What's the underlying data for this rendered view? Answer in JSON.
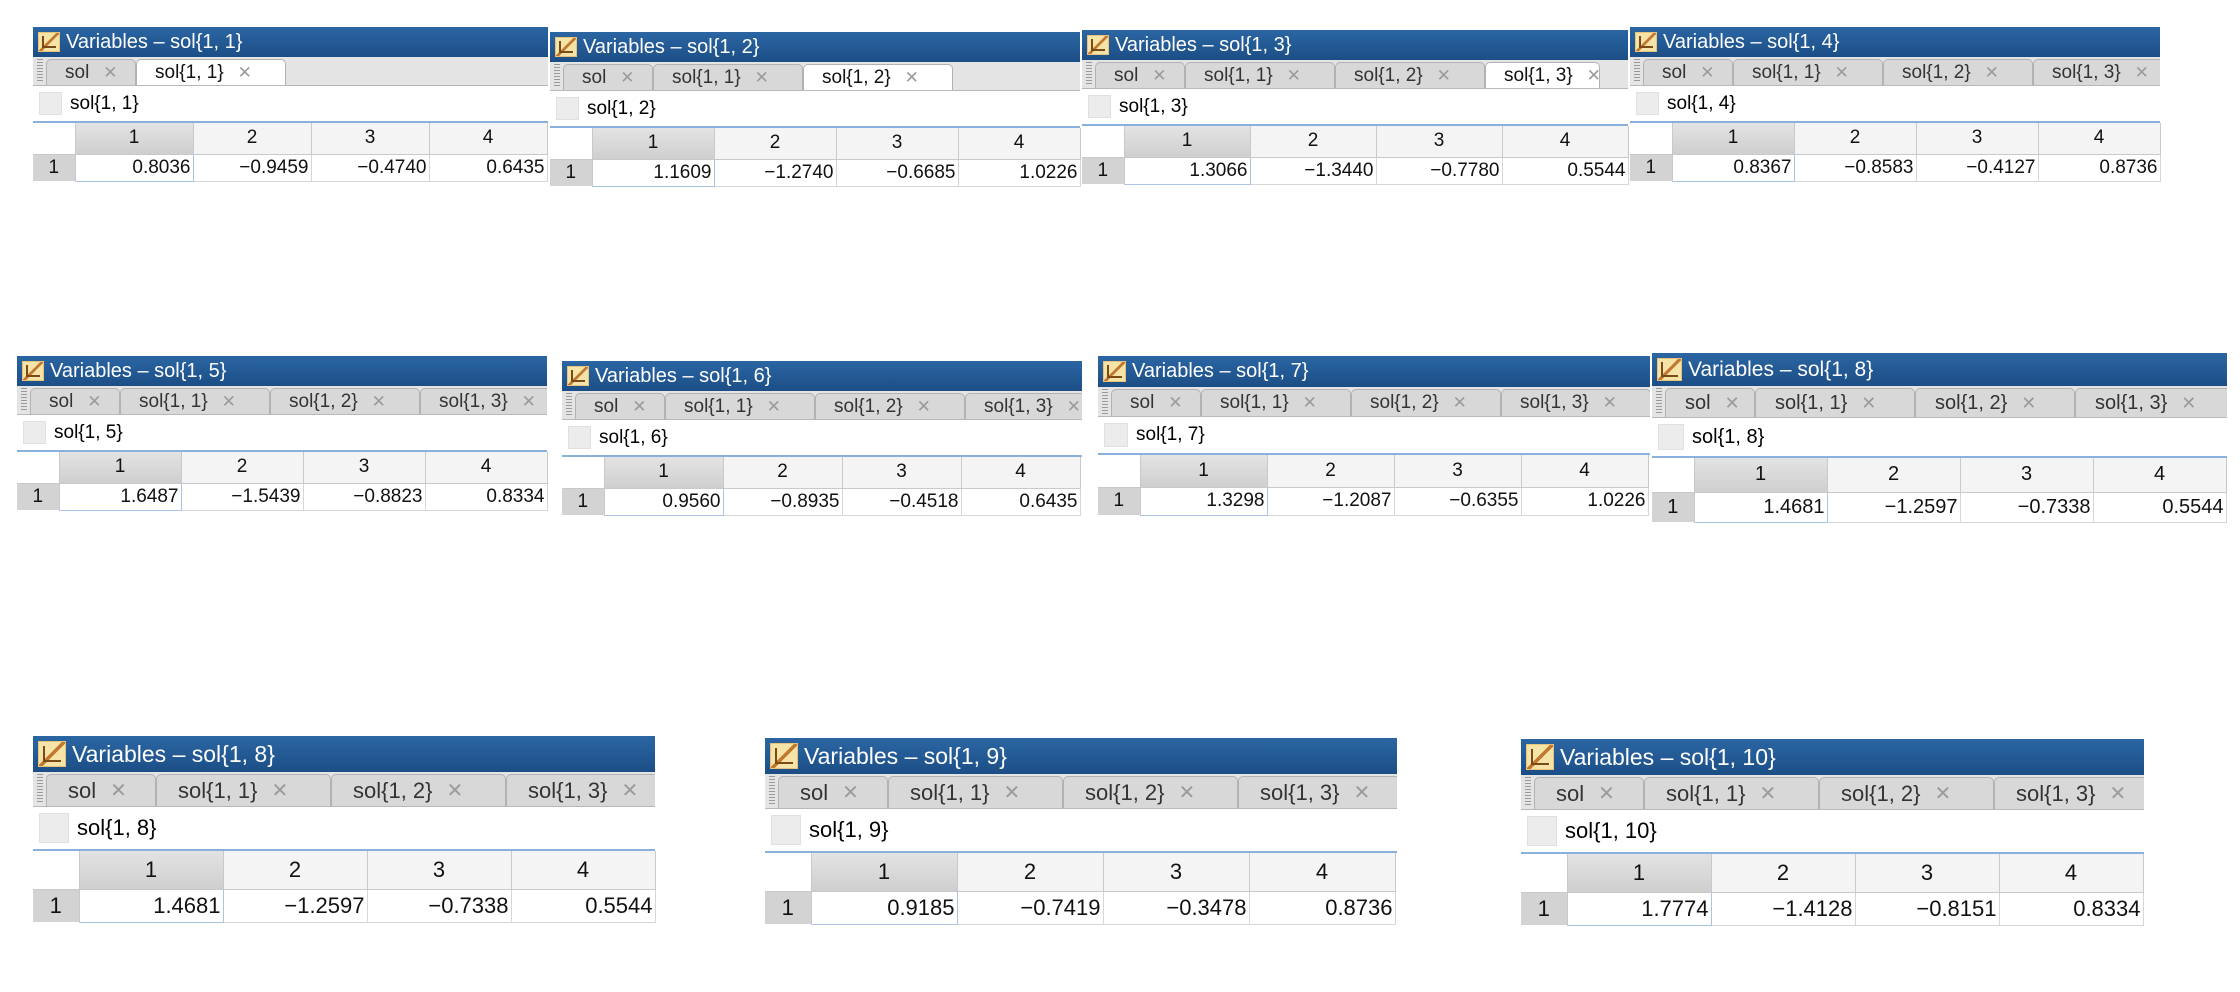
{
  "panels": [
    {
      "title": "Variables – sol{1, 1}",
      "tabs": [
        {
          "label": "sol",
          "active": false
        },
        {
          "label": "sol{1, 1}",
          "active": true
        }
      ],
      "var_name": "sol{1, 1}",
      "columns": [
        "1",
        "2",
        "3",
        "4"
      ],
      "row_label": "1",
      "values": [
        "0.8036",
        "−0.9459",
        "−0.4740",
        "0.6435"
      ]
    },
    {
      "title": "Variables – sol{1, 2}",
      "tabs": [
        {
          "label": "sol",
          "active": false
        },
        {
          "label": "sol{1, 1}",
          "active": false
        },
        {
          "label": "sol{1, 2}",
          "active": true
        }
      ],
      "var_name": "sol{1, 2}",
      "columns": [
        "1",
        "2",
        "3",
        "4"
      ],
      "row_label": "1",
      "values": [
        "1.1609",
        "−1.2740",
        "−0.6685",
        "1.0226"
      ]
    },
    {
      "title": "Variables – sol{1, 3}",
      "tabs": [
        {
          "label": "sol",
          "active": false
        },
        {
          "label": "sol{1, 1}",
          "active": false
        },
        {
          "label": "sol{1, 2}",
          "active": false
        },
        {
          "label": "sol{1, 3}",
          "active": true
        }
      ],
      "var_name": "sol{1, 3}",
      "columns": [
        "1",
        "2",
        "3",
        "4"
      ],
      "row_label": "1",
      "values": [
        "1.3066",
        "−1.3440",
        "−0.7780",
        "0.5544"
      ]
    },
    {
      "title": "Variables – sol{1, 4}",
      "tabs": [
        {
          "label": "sol",
          "active": false
        },
        {
          "label": "sol{1, 1}",
          "active": false
        },
        {
          "label": "sol{1, 2}",
          "active": false
        },
        {
          "label": "sol{1, 3}",
          "active": false
        }
      ],
      "var_name": "sol{1, 4}",
      "columns": [
        "1",
        "2",
        "3",
        "4"
      ],
      "row_label": "1",
      "values": [
        "0.8367",
        "−0.8583",
        "−0.4127",
        "0.8736"
      ]
    },
    {
      "title": "Variables – sol{1, 5}",
      "tabs": [
        {
          "label": "sol",
          "active": false
        },
        {
          "label": "sol{1, 1}",
          "active": false
        },
        {
          "label": "sol{1, 2}",
          "active": false
        },
        {
          "label": "sol{1, 3}",
          "active": false
        }
      ],
      "var_name": "sol{1, 5}",
      "columns": [
        "1",
        "2",
        "3",
        "4"
      ],
      "row_label": "1",
      "values": [
        "1.6487",
        "−1.5439",
        "−0.8823",
        "0.8334"
      ]
    },
    {
      "title": "Variables – sol{1, 6}",
      "tabs": [
        {
          "label": "sol",
          "active": false
        },
        {
          "label": "sol{1, 1}",
          "active": false
        },
        {
          "label": "sol{1, 2}",
          "active": false
        },
        {
          "label": "sol{1, 3}",
          "active": false
        }
      ],
      "var_name": "sol{1, 6}",
      "columns": [
        "1",
        "2",
        "3",
        "4"
      ],
      "row_label": "1",
      "values": [
        "0.9560",
        "−0.8935",
        "−0.4518",
        "0.6435"
      ]
    },
    {
      "title": "Variables – sol{1, 7}",
      "tabs": [
        {
          "label": "sol",
          "active": false
        },
        {
          "label": "sol{1, 1}",
          "active": false
        },
        {
          "label": "sol{1, 2}",
          "active": false
        },
        {
          "label": "sol{1, 3}",
          "active": false
        }
      ],
      "var_name": "sol{1, 7}",
      "columns": [
        "1",
        "2",
        "3",
        "4"
      ],
      "row_label": "1",
      "values": [
        "1.3298",
        "−1.2087",
        "−0.6355",
        "1.0226"
      ]
    },
    {
      "title": "Variables – sol{1, 8}",
      "tabs": [
        {
          "label": "sol",
          "active": false
        },
        {
          "label": "sol{1, 1}",
          "active": false
        },
        {
          "label": "sol{1, 2}",
          "active": false
        },
        {
          "label": "sol{1, 3}",
          "active": false
        }
      ],
      "var_name": "sol{1, 8}",
      "columns": [
        "1",
        "2",
        "3",
        "4"
      ],
      "row_label": "1",
      "values": [
        "1.4681",
        "−1.2597",
        "−0.7338",
        "0.5544"
      ]
    },
    {
      "title": "Variables – sol{1, 8}",
      "tabs": [
        {
          "label": "sol",
          "active": false
        },
        {
          "label": "sol{1, 1}",
          "active": false
        },
        {
          "label": "sol{1, 2}",
          "active": false
        },
        {
          "label": "sol{1, 3}",
          "active": false
        }
      ],
      "var_name": "sol{1, 8}",
      "columns": [
        "1",
        "2",
        "3",
        "4"
      ],
      "row_label": "1",
      "values": [
        "1.4681",
        "−1.2597",
        "−0.7338",
        "0.5544"
      ]
    },
    {
      "title": "Variables – sol{1, 9}",
      "tabs": [
        {
          "label": "sol",
          "active": false
        },
        {
          "label": "sol{1, 1}",
          "active": false
        },
        {
          "label": "sol{1, 2}",
          "active": false
        },
        {
          "label": "sol{1, 3}",
          "active": false
        }
      ],
      "var_name": "sol{1, 9}",
      "columns": [
        "1",
        "2",
        "3",
        "4"
      ],
      "row_label": "1",
      "values": [
        "0.9185",
        "−0.7419",
        "−0.3478",
        "0.8736"
      ]
    },
    {
      "title": "Variables – sol{1, 10}",
      "tabs": [
        {
          "label": "sol",
          "active": false
        },
        {
          "label": "sol{1, 1}",
          "active": false
        },
        {
          "label": "sol{1, 2}",
          "active": false
        },
        {
          "label": "sol{1, 3}",
          "active": false
        }
      ],
      "var_name": "sol{1, 10}",
      "columns": [
        "1",
        "2",
        "3",
        "4"
      ],
      "row_label": "1",
      "values": [
        "1.7774",
        "−1.4128",
        "−0.8151",
        "0.8334"
      ]
    }
  ]
}
